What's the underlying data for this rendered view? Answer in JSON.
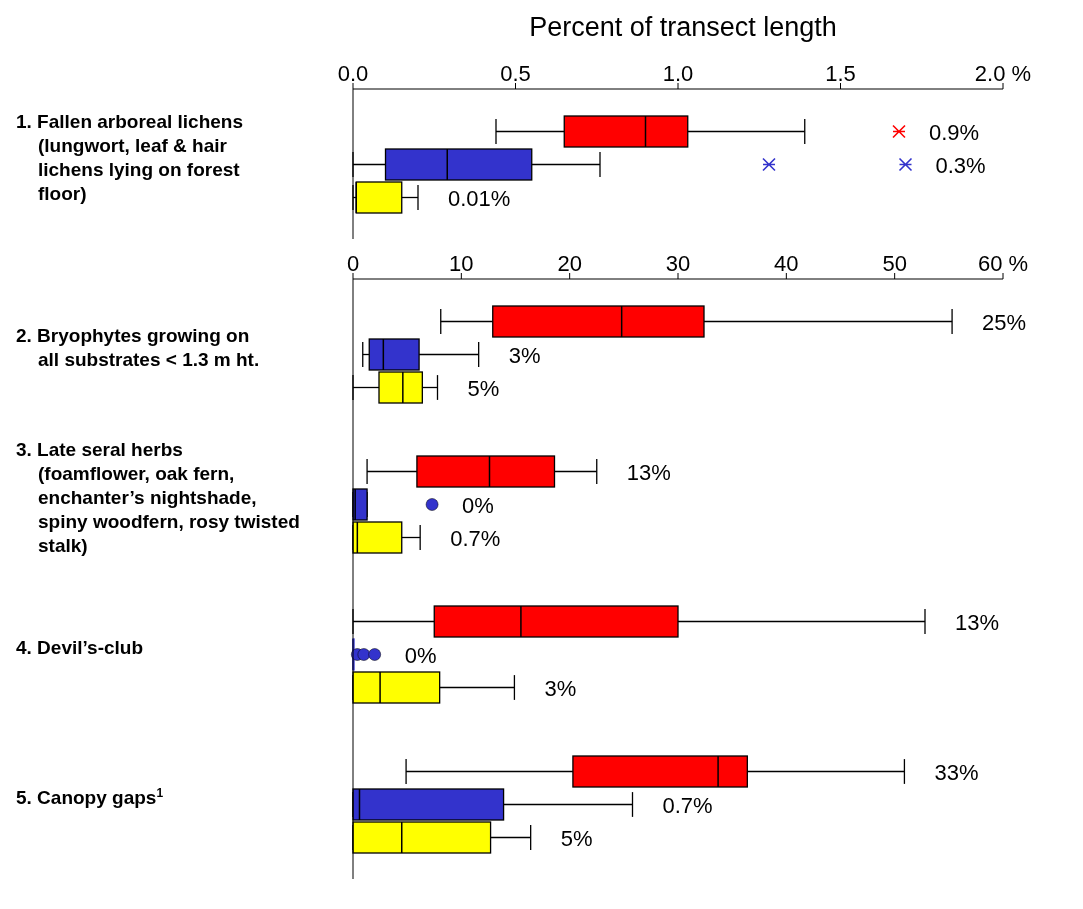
{
  "chart_data": [
    {
      "type": "box",
      "orientation": "horizontal",
      "xlabel": "Percent of transect length",
      "categories": [
        "1.  Fallen arboreal lichens (lungwort, leaf & hair lichens lying on forest floor)"
      ],
      "xlim": [
        0,
        2
      ],
      "xticks": [
        {
          "value": 0,
          "label": "0.0"
        },
        0.5,
        {
          "value": 1,
          "label": "1.0"
        },
        1.5,
        {
          "value": 2,
          "label": "2.0 %"
        }
      ],
      "marker": "cross",
      "grid": false,
      "legend": false,
      "series": [
        {
          "color": "#ff0000",
          "boxes": [
            {
              "low": 0.44,
              "q1": 0.65,
              "median": 0.9,
              "q3": 1.03,
              "high": 1.39,
              "outliers": [
                1.68
              ]
            }
          ]
        },
        {
          "color": "#3333cc",
          "boxes": [
            {
              "low": 0,
              "q1": 0.1,
              "median": 0.29,
              "q3": 0.55,
              "high": 0.76,
              "outliers": [
                1.28,
                1.7
              ]
            }
          ]
        },
        {
          "color": "#ffff00",
          "boxes": [
            {
              "low": 0,
              "q1": 0.01,
              "median": 0.01,
              "q3": 0.15,
              "high": 0.2
            }
          ]
        }
      ],
      "annotations": [
        "0.9%",
        "0.3%",
        "0.01%"
      ]
    },
    {
      "type": "box",
      "orientation": "horizontal",
      "categories": [
        "2.  Bryophytes growing on all substrates < 1.3 m ht.",
        "3.  Late seral herbs (foamflower, oak fern, enchanter’s nightshade, spiny woodfern, rosy twisted stalk)",
        "4.  Devil’s-club",
        "5.  Canopy gaps$^{1}$"
      ],
      "xlim": [
        0,
        60
      ],
      "xticks": [
        0,
        10,
        20,
        30,
        40,
        50,
        {
          "value": 60,
          "label": "60 %"
        }
      ],
      "marker": "circle",
      "grid": false,
      "legend": false,
      "series": [
        {
          "color": "#ff0000",
          "boxes": [
            {
              "low": 8.1,
              "q1": 12.9,
              "median": 24.8,
              "q3": 32.4,
              "high": 55.3
            },
            {
              "low": 1.3,
              "q1": 5.9,
              "median": 12.6,
              "q3": 18.6,
              "high": 22.5
            },
            {
              "low": 0,
              "q1": 7.5,
              "median": 15.5,
              "q3": 30,
              "high": 52.8
            },
            {
              "low": 4.9,
              "q1": 20.3,
              "median": 33.7,
              "q3": 36.4,
              "high": 50.9
            }
          ]
        },
        {
          "color": "#3333cc",
          "boxes": [
            {
              "low": 0.9,
              "q1": 1.5,
              "median": 2.8,
              "q3": 6.1,
              "high": 11.6
            },
            {
              "low": 0,
              "q1": 0,
              "median": 0.2,
              "q3": 1.3,
              "high": 1.3,
              "outliers": [
                7.3
              ]
            },
            {
              "low": 0,
              "q1": 0,
              "median": 0,
              "q3": 0,
              "high": 0,
              "outliers": [
                0.4,
                1,
                2
              ]
            },
            {
              "low": 0,
              "q1": 0,
              "median": 0.6,
              "q3": 13.9,
              "high": 25.8
            }
          ]
        },
        {
          "color": "#ffff00",
          "boxes": [
            {
              "low": 0,
              "q1": 2.4,
              "median": 4.6,
              "q3": 6.4,
              "high": 7.8
            },
            {
              "low": 0,
              "q1": 0,
              "median": 0.4,
              "q3": 4.5,
              "high": 6.2
            },
            {
              "low": 0,
              "q1": 0,
              "median": 2.5,
              "q3": 8,
              "high": 14.9
            },
            {
              "low": 0,
              "q1": 0,
              "median": 4.5,
              "q3": 12.7,
              "high": 16.4
            }
          ]
        }
      ],
      "annotations": [
        "25%",
        "3%",
        "5%",
        "13%",
        "0%",
        "0.7%",
        "13%",
        "0%",
        "3%",
        "33%",
        "0.7%",
        "5%"
      ]
    }
  ]
}
